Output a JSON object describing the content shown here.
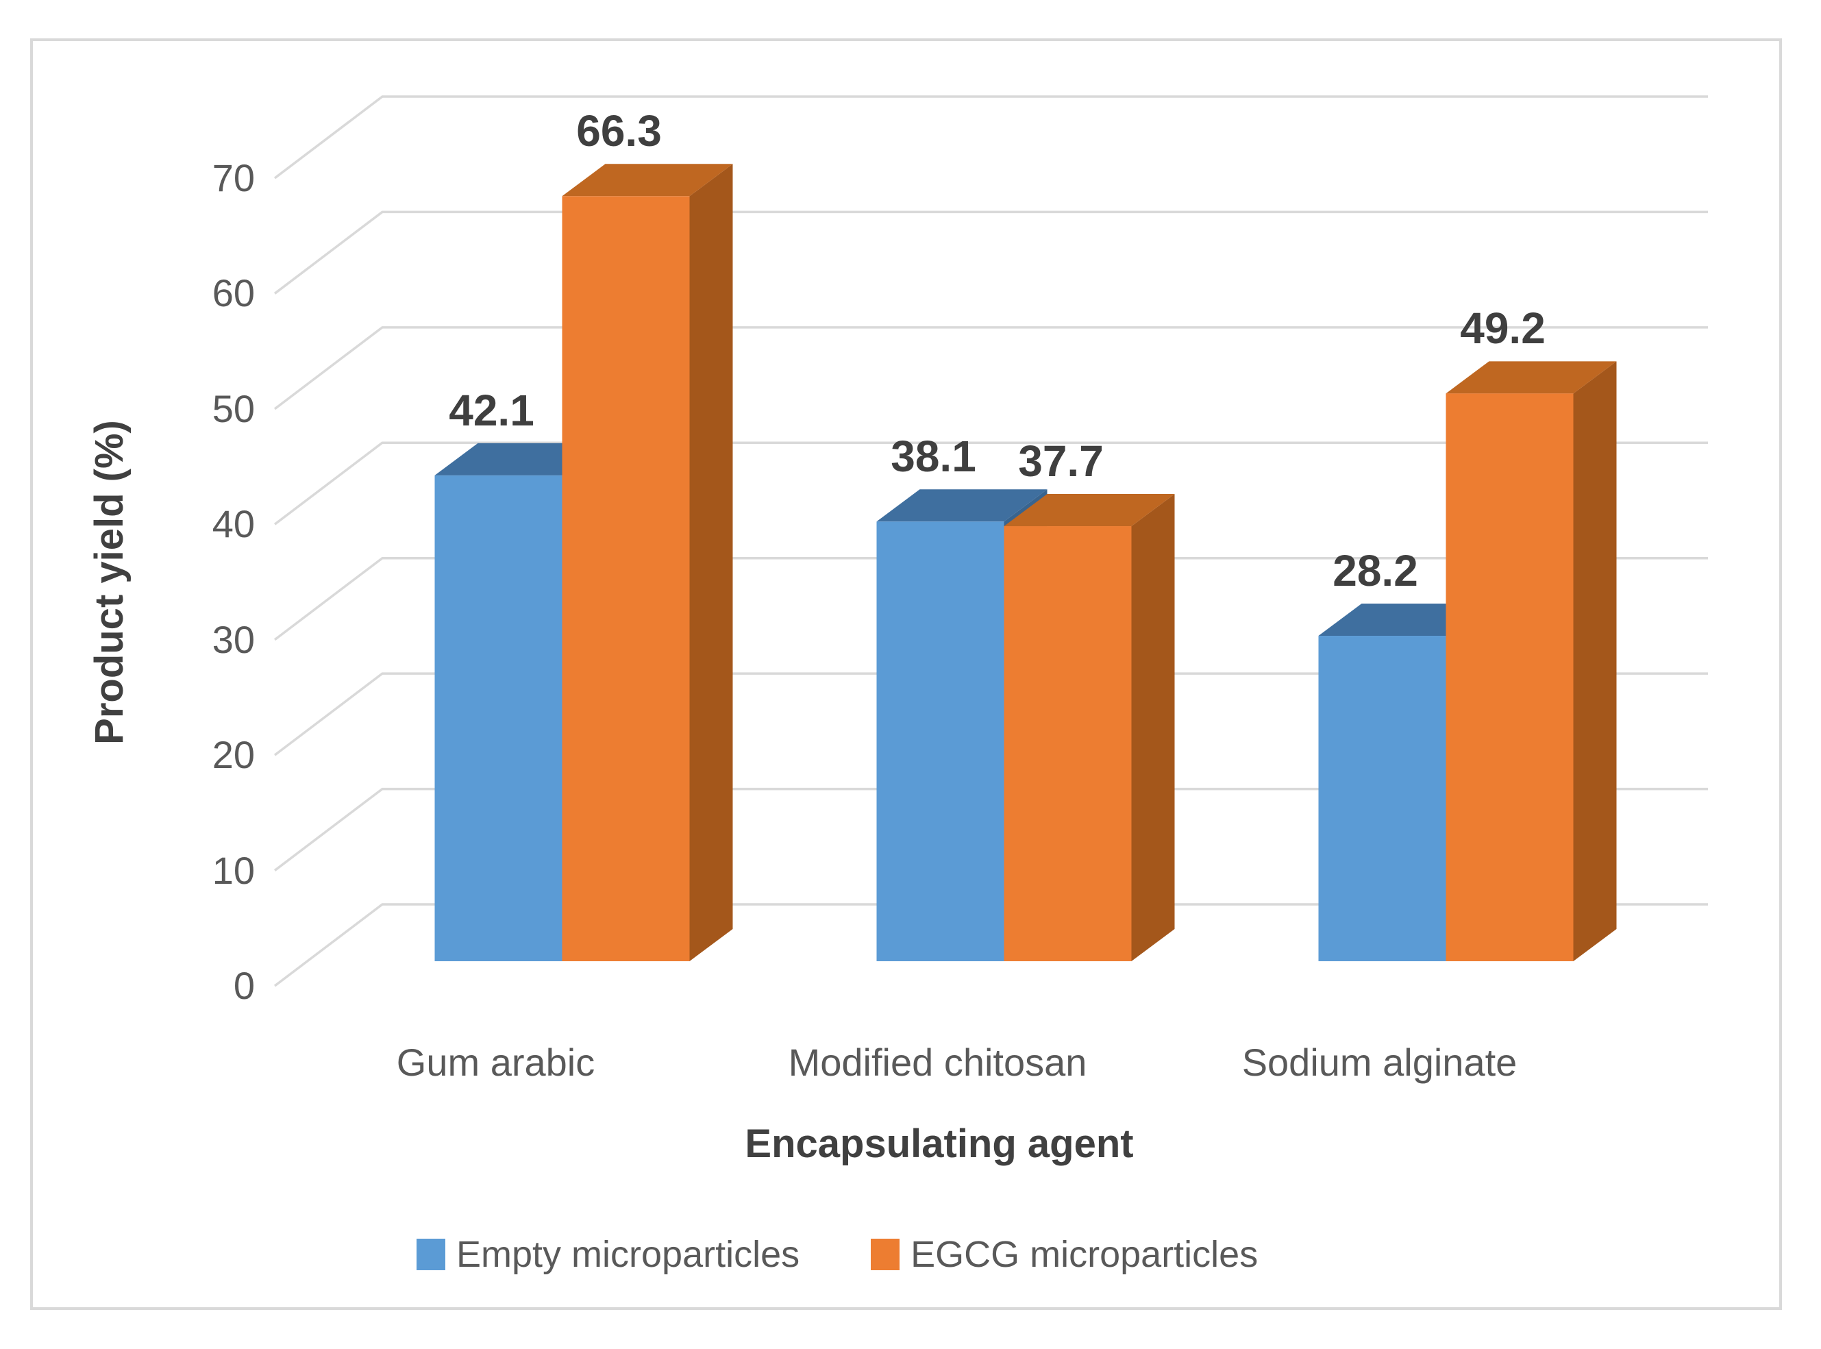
{
  "figure": {
    "frame_color": "#D9D9D9",
    "background": "#ffffff"
  },
  "chart_data": {
    "type": "bar",
    "view": "3d-clustered-column",
    "categories": [
      "Gum arabic",
      "Modified chitosan",
      "Sodium alginate"
    ],
    "series": [
      {
        "name": "Empty microparticles",
        "color": "#5B9BD5",
        "color_top": "#3F6F9F",
        "color_side": "#38648F",
        "values": [
          42.1,
          38.1,
          28.2
        ]
      },
      {
        "name": "EGCG microparticles",
        "color": "#ED7D31",
        "color_top": "#BF6721",
        "color_side": "#A4571B",
        "values": [
          66.3,
          37.7,
          49.2
        ]
      }
    ],
    "data_labels": [
      "42.1",
      "66.3",
      "38.1",
      "37.7",
      "28.2",
      "49.2"
    ],
    "xlabel": "Encapsulating agent",
    "ylabel": "Product yield (%)",
    "ylim": [
      0,
      70
    ],
    "ytick_step": 10,
    "yticks": [
      "0",
      "10",
      "20",
      "30",
      "40",
      "50",
      "60",
      "70"
    ],
    "grid": true,
    "gridline_color": "#D9D9D9",
    "tick_color": "#595959",
    "axis_title_color": "#404040",
    "data_label_color": "#3F3F3F",
    "legend_position": "bottom"
  }
}
